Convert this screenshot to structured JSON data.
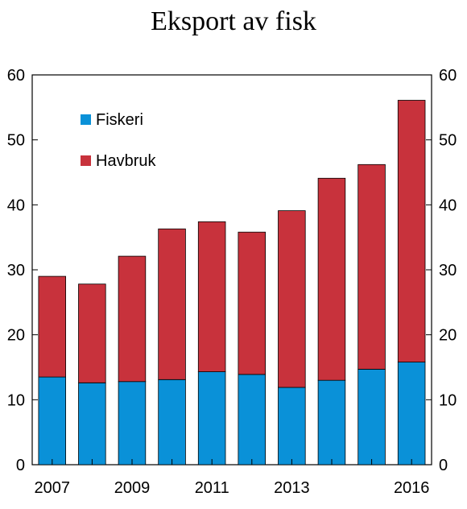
{
  "chart_data": {
    "type": "bar",
    "stacked": true,
    "title": "Eksport av fisk",
    "categories": [
      "2007",
      "2008",
      "2009",
      "2010",
      "2011",
      "2012",
      "2013",
      "2014",
      "2015",
      "2016"
    ],
    "x_tick_labels": [
      "2007",
      "",
      "2009",
      "",
      "2011",
      "",
      "2013",
      "",
      "",
      "2016"
    ],
    "series": [
      {
        "name": "Fiskeri",
        "color": "#0a91d8",
        "values": [
          13.5,
          12.6,
          12.8,
          13.1,
          14.3,
          13.9,
          11.9,
          13.0,
          14.7,
          15.8
        ]
      },
      {
        "name": "Havbruk",
        "color": "#c8323c",
        "values": [
          15.5,
          15.2,
          19.3,
          23.2,
          23.1,
          21.9,
          27.2,
          31.1,
          31.5,
          40.3
        ]
      }
    ],
    "ylim": [
      0,
      60
    ],
    "yticks": [
      0,
      10,
      20,
      30,
      40,
      50,
      60
    ],
    "legend_position": "top-left",
    "grid": false
  }
}
